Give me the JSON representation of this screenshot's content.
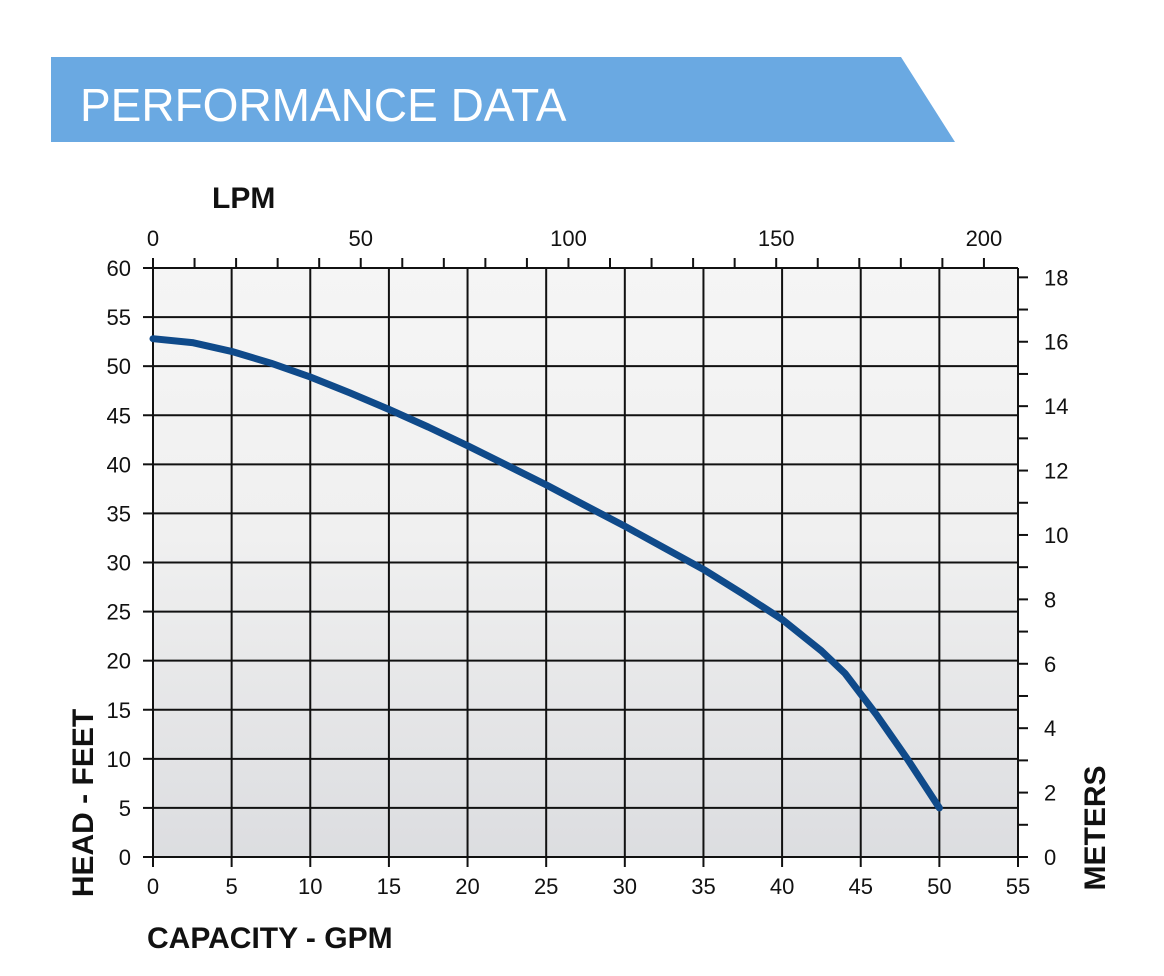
{
  "header": {
    "title": "PERFORMANCE DATA"
  },
  "colors": {
    "banner": "#6aa9e2",
    "curve": "#0f4a8a",
    "grid": "#111111"
  },
  "chart_data": {
    "type": "line",
    "title": "",
    "xlabel": "CAPACITY - GPM",
    "ylabel": "HEAD - FEET",
    "x2label": "LPM",
    "y2label": "METERS",
    "xlim": [
      0,
      55
    ],
    "ylim": [
      0,
      60
    ],
    "x2lim": [
      0,
      208.2
    ],
    "y2lim": [
      0,
      18.29
    ],
    "x_ticks": [
      0,
      5,
      10,
      15,
      20,
      25,
      30,
      35,
      40,
      45,
      50,
      55
    ],
    "y_ticks": [
      0,
      5,
      10,
      15,
      20,
      25,
      30,
      35,
      40,
      45,
      50,
      55,
      60
    ],
    "x2_ticks": [
      0,
      50,
      100,
      150,
      200
    ],
    "y2_ticks": [
      0,
      2,
      4,
      6,
      8,
      10,
      12,
      14,
      16,
      18
    ],
    "grid": true,
    "series": [
      {
        "x": [
          0,
          2.5,
          5,
          7.5,
          10,
          12.5,
          15,
          17.5,
          20,
          22.5,
          25,
          27.5,
          30,
          32.5,
          35,
          37.5,
          40,
          42.5,
          44,
          46,
          48,
          50
        ],
        "y": [
          52.8,
          52.4,
          51.5,
          50.3,
          48.9,
          47.3,
          45.6,
          43.8,
          41.9,
          39.9,
          37.9,
          35.8,
          33.7,
          31.5,
          29.3,
          26.8,
          24.2,
          21.0,
          18.7,
          14.5,
          9.9,
          5.0
        ]
      }
    ]
  }
}
